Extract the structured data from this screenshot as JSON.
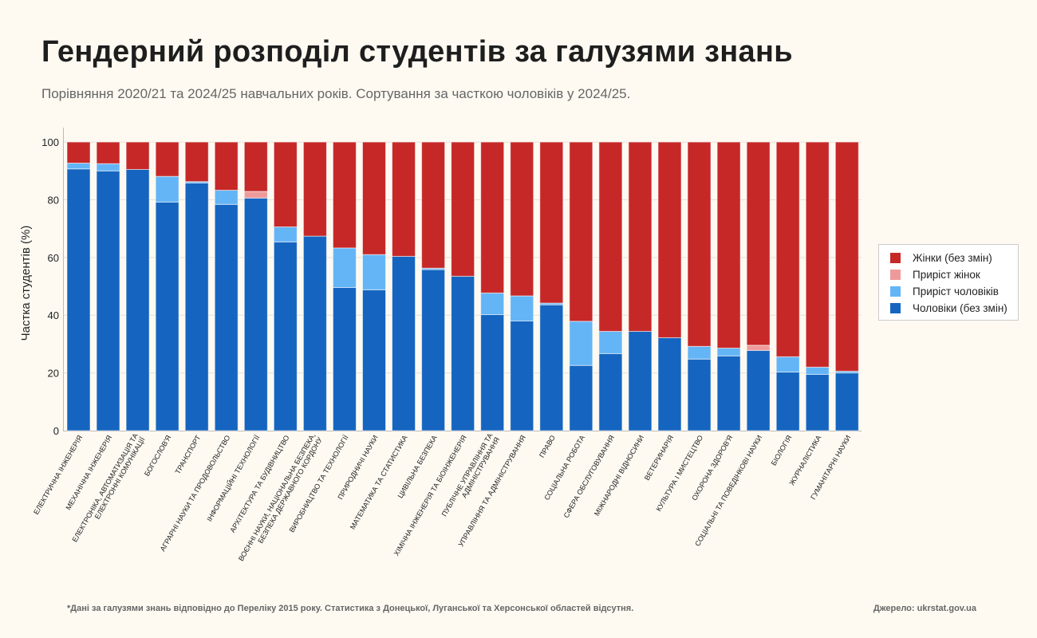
{
  "title": "Гендерний розподіл студентів за галузями знань",
  "subtitle": "Порівняння 2020/21 та 2024/25 навчальних років. Сортування за часткою чоловіків у 2024/25.",
  "footnote": "*Дані за галузями знань відповідно до Переліку 2015 року. Статистика з Донецької, Луганської та Херсонської областей відсутня.",
  "source": "Джерело: ukrstat.gov.ua",
  "colors": {
    "women_base": "#c62828",
    "women_growth": "#ef9a9a",
    "men_growth": "#64b5f6",
    "men_base": "#1565c0"
  },
  "chart_data": {
    "type": "bar",
    "stacked": true,
    "ylabel": "Частка студентів (%)",
    "xlabel": "",
    "ylim": [
      0,
      105
    ],
    "yticks": [
      0,
      20,
      40,
      60,
      80,
      100
    ],
    "grid": true,
    "legend_position": "right",
    "legend": [
      "Жінки (без змін)",
      "Приріст жінок",
      "Приріст чоловіків",
      "Чоловіки (без змін)"
    ],
    "categories": [
      [
        "ЕЛЕКТРИЧНА ІНЖЕНЕРІЯ"
      ],
      [
        "МЕХАНІЧНА ІНЖЕНЕРІЯ"
      ],
      [
        "ЕЛЕКТРОНІКА, АВТОМАТИЗАЦІЯ ТА",
        "ЕЛЕКТРОННІ КОМУНІКАЦІЇ"
      ],
      [
        "БОГОСЛОВ'Я"
      ],
      [
        "ТРАНСПОРТ"
      ],
      [
        "АГРАРНІ НАУКИ ТА ПРОДОВОЛЬСТВО"
      ],
      [
        "ІНФОРМАЦІЙНІ ТЕХНОЛОГІЇ"
      ],
      [
        "АРХІТЕКТУРА ТА БУДІВНИЦТВО"
      ],
      [
        "ВОЄННІ НАУКИ, НАЦІОНАЛЬНА БЕЗПЕКА,",
        "БЕЗПЕКА ДЕРЖАВНОГО КОРДОНУ"
      ],
      [
        "ВИРОБНИЦТВО ТА ТЕХНОЛОГІЇ"
      ],
      [
        "ПРИРОДНИЧІ НАУКИ"
      ],
      [
        "МАТЕМАТИКА ТА СТАТИСТИКА"
      ],
      [
        "ЦИВІЛЬНА БЕЗПЕКА"
      ],
      [
        "ХІМІЧНА ІНЖЕНЕРІЯ ТА БІОІНЖЕНЕРІЯ"
      ],
      [
        "ПУБЛІЧНЕ УПРАВЛІННЯ ТА",
        "АДМІНІСТРУВАННЯ"
      ],
      [
        "УПРАВЛІННЯ ТА АДМІНІСТРУВАННЯ"
      ],
      [
        "ПРАВО"
      ],
      [
        "СОЦІАЛЬНА РОБОТА"
      ],
      [
        "СФЕРА ОБСЛУГОВУВАННЯ"
      ],
      [
        "МІЖНАРОДНІ ВІДНОСИНИ"
      ],
      [
        "ВЕТЕРИНАРІЯ"
      ],
      [
        "КУЛЬТУРА І МИСТЕЦТВО"
      ],
      [
        "ОХОРОНА ЗДОРОВ'Я"
      ],
      [
        "СОЦІАЛЬНІ ТА ПОВЕДІНКОВІ НАУКИ"
      ],
      [
        "БІОЛОГІЯ"
      ],
      [
        "ЖУРНАЛІСТИКА"
      ],
      [
        "ГУМАНІТАРНІ НАУКИ"
      ]
    ],
    "series": [
      {
        "name": "Чоловіки (без змін)",
        "values": [
          90.7,
          90.0,
          90.5,
          79.2,
          85.8,
          78.4,
          80.6,
          65.4,
          67.4,
          49.6,
          48.8,
          60.4,
          55.8,
          53.5,
          40.2,
          38.0,
          43.6,
          22.6,
          26.7,
          34.4,
          32.2,
          24.8,
          25.9,
          27.8,
          20.3,
          19.5,
          20.0
        ]
      },
      {
        "name": "Приріст чоловіків",
        "values": [
          2.0,
          2.5,
          0,
          8.9,
          0.5,
          4.9,
          0,
          5.2,
          0,
          13.7,
          12.2,
          0,
          0.5,
          0,
          7.5,
          8.7,
          0.6,
          15.3,
          7.7,
          0,
          0,
          4.4,
          2.7,
          0,
          5.3,
          2.5,
          0.6
        ]
      },
      {
        "name": "Приріст жінок",
        "values": [
          0,
          0,
          0,
          0,
          0,
          0,
          2.3,
          0,
          0,
          0,
          0,
          0,
          0,
          0,
          0,
          0,
          0,
          0,
          0,
          0,
          0,
          0,
          0,
          1.8,
          0,
          0,
          0
        ]
      },
      {
        "name": "Жінки (без змін)",
        "values": [
          7.3,
          7.5,
          9.5,
          11.9,
          13.7,
          16.7,
          17.1,
          29.4,
          32.6,
          36.7,
          39.0,
          39.6,
          43.7,
          46.5,
          52.3,
          53.3,
          55.8,
          62.1,
          65.6,
          65.6,
          67.8,
          70.8,
          71.4,
          70.4,
          74.4,
          78.0,
          79.4
        ]
      }
    ]
  }
}
